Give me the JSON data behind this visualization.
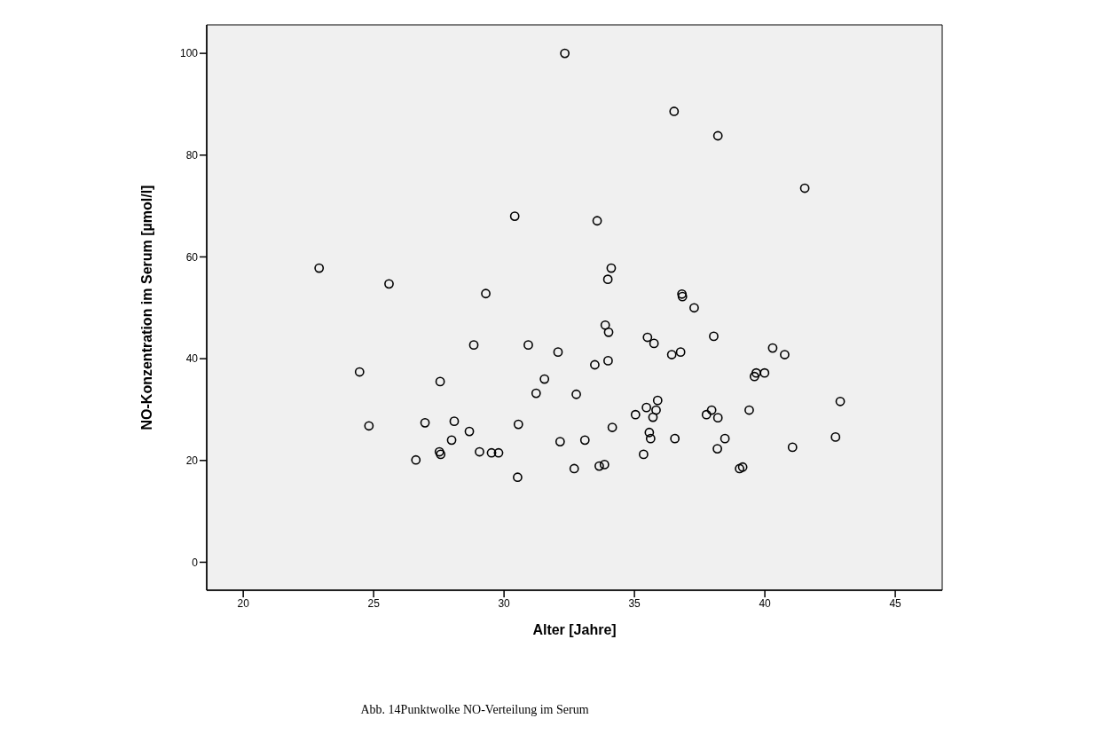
{
  "chart_data": {
    "type": "scatter",
    "xlabel": "Alter [Jahre]",
    "ylabel": "NO-Konzentration im Serum [µmol/l]",
    "annotations": [
      "Abb. 14Punktwolke NO-Verteilung im Serum"
    ],
    "xlim": [
      18.6,
      46.8
    ],
    "ylim": [
      -5.5,
      105.6
    ],
    "xticks": [
      20,
      25,
      30,
      35,
      40,
      45
    ],
    "yticks": [
      0,
      20,
      40,
      60,
      80,
      100
    ],
    "grid": false,
    "legend": false,
    "marker": "circle",
    "series": [
      {
        "color": "#000000",
        "x": [
          22.91,
          25.59,
          24.46,
          24.82,
          29.3,
          28.84,
          30.93,
          27.55,
          31.55,
          31.23,
          26.97,
          28.09,
          28.67,
          27.99,
          30.55,
          26.62,
          27.52,
          27.57,
          29.06,
          29.52,
          29.79,
          30.52,
          34.11,
          33.98,
          36.82,
          36.84,
          37.29,
          33.88,
          34.01,
          35.5,
          35.75,
          36.43,
          36.77,
          38.04,
          40.3,
          40.76,
          32.07,
          33.48,
          33.99,
          32.77,
          39.67,
          39.6,
          39.99,
          35.89,
          35.46,
          35.83,
          35.04,
          35.71,
          42.89,
          37.96,
          37.76,
          38.2,
          39.4,
          34.15,
          35.57,
          35.62,
          36.55,
          38.47,
          42.71,
          38.18,
          41.06,
          32.15,
          33.1,
          35.35,
          32.69,
          33.65,
          33.85,
          39.03,
          39.15,
          32.33,
          30.41,
          33.57,
          36.52,
          38.2,
          41.53
        ],
        "values": [
          57.8,
          54.7,
          37.4,
          26.8,
          52.8,
          42.7,
          42.7,
          35.5,
          36.0,
          33.2,
          27.4,
          27.7,
          25.7,
          24.0,
          27.1,
          20.1,
          21.7,
          21.2,
          21.7,
          21.5,
          21.5,
          16.7,
          57.8,
          55.6,
          52.7,
          52.2,
          50.0,
          46.6,
          45.2,
          44.2,
          43.0,
          40.8,
          41.3,
          44.4,
          42.1,
          40.8,
          41.3,
          38.8,
          39.6,
          33.0,
          37.2,
          36.5,
          37.2,
          31.8,
          30.4,
          29.9,
          29.0,
          28.5,
          31.6,
          29.9,
          29.0,
          28.4,
          29.9,
          26.5,
          25.5,
          24.3,
          24.3,
          24.3,
          24.6,
          22.3,
          22.6,
          23.7,
          24.0,
          21.2,
          18.4,
          18.9,
          19.2,
          18.4,
          18.7,
          100.0,
          68.0,
          67.1,
          88.6,
          83.8,
          73.5
        ]
      }
    ]
  }
}
